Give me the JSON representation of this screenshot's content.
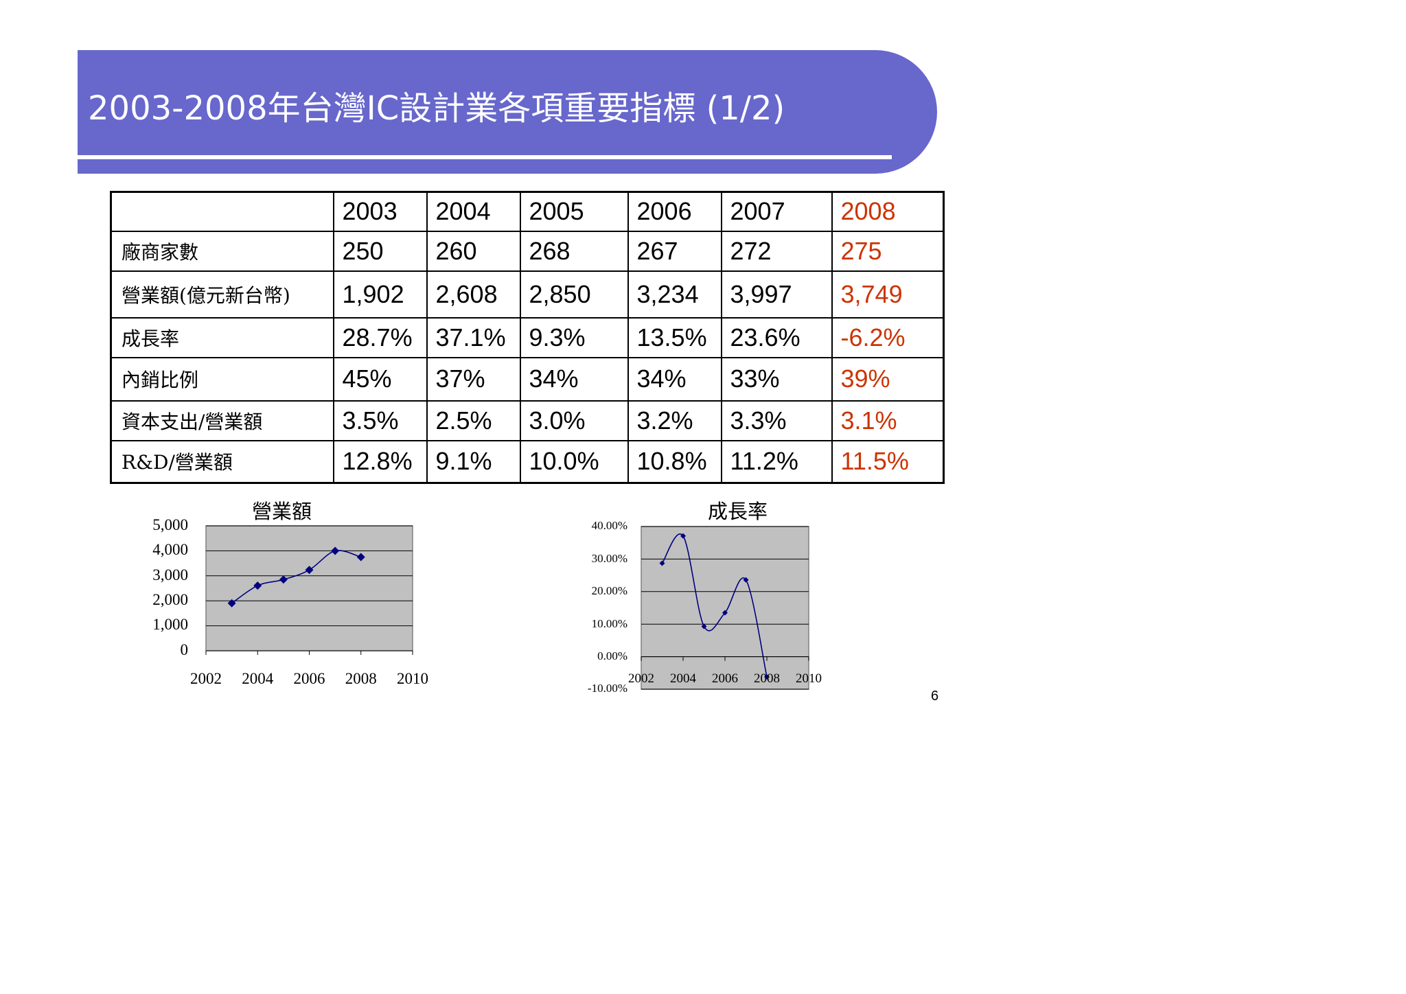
{
  "title": "2003-2008年台灣IC設計業各項重要指標 (1/2)",
  "colors": {
    "banner": "#6767cc",
    "highlight": "#cc3300",
    "plot_area": "#c0c0c0",
    "series": "#000080"
  },
  "table": {
    "headers": [
      "",
      "2003",
      "2004",
      "2005",
      "2006",
      "2007",
      "2008"
    ],
    "rows": [
      {
        "label": "廠商家數",
        "values": [
          "250",
          "260",
          "268",
          "267",
          "272",
          "275"
        ]
      },
      {
        "label": "營業額(億元新台幣)",
        "values": [
          "1,902",
          "2,608",
          "2,850",
          "3,234",
          "3,997",
          "3,749"
        ]
      },
      {
        "label": "成長率",
        "values": [
          "28.7%",
          "37.1%",
          "9.3%",
          "13.5%",
          "23.6%",
          "-6.2%"
        ]
      },
      {
        "label": "內銷比例",
        "values": [
          "45%",
          "37%",
          "34%",
          "34%",
          "33%",
          "39%"
        ]
      },
      {
        "label": "資本支出/營業額",
        "values": [
          "3.5%",
          "2.5%",
          "3.0%",
          "3.2%",
          "3.3%",
          "3.1%"
        ]
      },
      {
        "label": "R&D/營業額",
        "values": [
          "12.8%",
          "9.1%",
          "10.0%",
          "10.8%",
          "11.2%",
          "11.5%"
        ]
      }
    ]
  },
  "chart_data": [
    {
      "type": "scatter",
      "title": "營業額",
      "x": [
        2003,
        2004,
        2005,
        2006,
        2007,
        2008
      ],
      "y": [
        1902,
        2608,
        2850,
        3234,
        3997,
        3749
      ],
      "xlim": [
        2002,
        2010
      ],
      "ylim": [
        0,
        5000
      ],
      "x_ticks": [
        "2002",
        "2004",
        "2006",
        "2008",
        "2010"
      ],
      "y_ticks": [
        "5,000",
        "4,000",
        "3,000",
        "2,000",
        "1,000",
        "0"
      ],
      "grid": true,
      "smoothed_line": true
    },
    {
      "type": "scatter",
      "title": "成長率",
      "x": [
        2003,
        2004,
        2005,
        2006,
        2007,
        2008
      ],
      "y": [
        28.7,
        37.1,
        9.3,
        13.5,
        23.6,
        -6.2
      ],
      "xlim": [
        2002,
        2010
      ],
      "ylim": [
        -10,
        40
      ],
      "x_ticks": [
        "2002",
        "2004",
        "2006",
        "2008",
        "2010"
      ],
      "y_ticks": [
        "40.00%",
        "30.00%",
        "20.00%",
        "10.00%",
        "0.00%",
        "-10.00%"
      ],
      "grid": true,
      "smoothed_line": true
    }
  ],
  "page_number": "6"
}
